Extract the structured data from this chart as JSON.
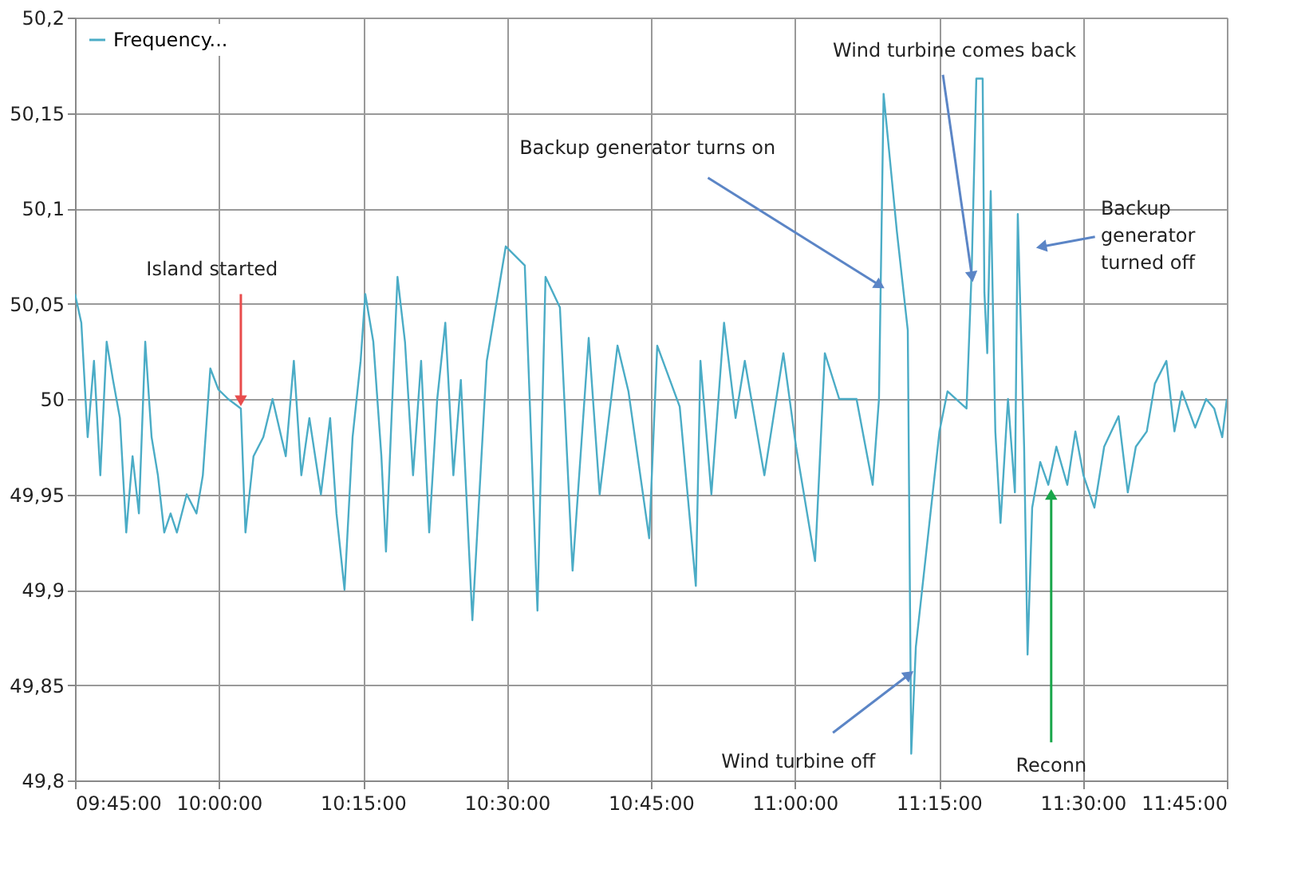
{
  "chart_data": {
    "type": "line",
    "x": [
      9.75,
      9.761,
      9.772,
      9.783,
      9.794,
      9.805,
      9.816,
      9.828,
      9.839,
      9.85,
      9.861,
      9.872,
      9.883,
      9.894,
      9.905,
      9.916,
      9.927,
      9.944,
      9.961,
      9.972,
      9.985,
      9.999,
      10.016,
      10.038,
      10.046,
      10.06,
      10.077,
      10.093,
      10.116,
      10.13,
      10.143,
      10.157,
      10.177,
      10.193,
      10.204,
      10.218,
      10.232,
      10.246,
      10.254,
      10.268,
      10.282,
      10.29,
      10.301,
      10.31,
      10.323,
      10.337,
      10.351,
      10.365,
      10.379,
      10.393,
      10.407,
      10.42,
      10.44,
      10.465,
      10.498,
      10.531,
      10.553,
      10.567,
      10.592,
      10.614,
      10.642,
      10.661,
      10.692,
      10.711,
      10.747,
      10.761,
      10.8,
      10.828,
      10.836,
      10.855,
      10.877,
      10.897,
      10.913,
      10.947,
      10.98,
      11.002,
      11.035,
      11.052,
      11.077,
      11.107,
      11.135,
      11.146,
      11.154,
      11.177,
      11.196,
      11.202,
      11.21,
      11.251,
      11.265,
      11.298,
      11.307,
      11.315,
      11.326,
      11.329,
      11.334,
      11.34,
      11.348,
      11.357,
      11.37,
      11.382,
      11.387,
      11.398,
      11.404,
      11.412,
      11.426,
      11.44,
      11.454,
      11.473,
      11.487,
      11.501,
      11.52,
      11.537,
      11.562,
      11.578,
      11.592,
      11.611,
      11.625,
      11.645,
      11.659,
      11.672,
      11.695,
      11.714,
      11.728,
      11.742,
      11.75
    ],
    "series": [
      {
        "name": "Frequency...",
        "color": "#4bacc6",
        "values": [
          50.055,
          50.04,
          49.98,
          50.02,
          49.96,
          50.03,
          50.01,
          49.99,
          49.93,
          49.97,
          49.94,
          50.03,
          49.98,
          49.96,
          49.93,
          49.94,
          49.93,
          49.95,
          49.94,
          49.96,
          50.016,
          50.005,
          50.0,
          49.995,
          49.93,
          49.97,
          49.98,
          50.0,
          49.97,
          50.02,
          49.96,
          49.99,
          49.95,
          49.99,
          49.94,
          49.9,
          49.98,
          50.02,
          50.055,
          50.03,
          49.97,
          49.92,
          50.0,
          50.064,
          50.03,
          49.96,
          50.02,
          49.93,
          50.0,
          50.04,
          49.96,
          50.01,
          49.884,
          50.02,
          50.08,
          50.07,
          49.889,
          50.064,
          50.048,
          49.91,
          50.032,
          49.95,
          50.028,
          50.004,
          49.927,
          50.028,
          49.996,
          49.902,
          50.02,
          49.95,
          50.04,
          49.99,
          50.02,
          49.96,
          50.024,
          49.975,
          49.915,
          50.024,
          50.0,
          50.0,
          49.955,
          50.0,
          50.16,
          50.088,
          50.036,
          49.814,
          49.87,
          49.983,
          50.004,
          49.995,
          50.068,
          50.168,
          50.168,
          50.056,
          50.024,
          50.109,
          49.983,
          49.935,
          50.0,
          49.951,
          50.097,
          49.975,
          49.866,
          49.943,
          49.967,
          49.955,
          49.975,
          49.955,
          49.983,
          49.96,
          49.943,
          49.975,
          49.991,
          49.951,
          49.975,
          49.983,
          50.008,
          50.02,
          49.983,
          50.004,
          49.985,
          50.0,
          49.995,
          49.98,
          50.0
        ]
      }
    ],
    "xlim": [
      9.75,
      11.75
    ],
    "xticks": [
      {
        "value": 9.75,
        "label": "09:45:00"
      },
      {
        "value": 10.0,
        "label": "10:00:00"
      },
      {
        "value": 10.25,
        "label": "10:15:00"
      },
      {
        "value": 10.5,
        "label": "10:30:00"
      },
      {
        "value": 10.75,
        "label": "10:45:00"
      },
      {
        "value": 11.0,
        "label": "11:00:00"
      },
      {
        "value": 11.25,
        "label": "11:15:00"
      },
      {
        "value": 11.5,
        "label": "11:30:00"
      },
      {
        "value": 11.75,
        "label": "11:45:00"
      }
    ],
    "ylim": [
      49.8,
      50.2
    ],
    "yticks": [
      {
        "value": 49.8,
        "label": "49,8"
      },
      {
        "value": 49.85,
        "label": "49,85"
      },
      {
        "value": 49.9,
        "label": "49,9"
      },
      {
        "value": 49.95,
        "label": "49,95"
      },
      {
        "value": 50.0,
        "label": "50"
      },
      {
        "value": 50.05,
        "label": "50,05"
      },
      {
        "value": 50.1,
        "label": "50,1"
      },
      {
        "value": 50.15,
        "label": "50,15"
      },
      {
        "value": 50.2,
        "label": "50,2"
      }
    ],
    "annotations": [
      {
        "text": "Island started",
        "x": 10.038,
        "y": 50.0
      },
      {
        "text": "Backup generator turns on",
        "x": 11.149,
        "y": 50.06
      },
      {
        "text": "Wind turbine off",
        "x": 11.196,
        "y": 49.855
      },
      {
        "text": "Wind turbine comes back",
        "x": 11.307,
        "y": 50.065
      },
      {
        "text": "Backup generator turned off",
        "x": 11.431,
        "y": 50.08
      },
      {
        "text": "Reconn",
        "x": 11.44,
        "y": 49.955
      }
    ],
    "grid": true,
    "legend": "top left"
  }
}
